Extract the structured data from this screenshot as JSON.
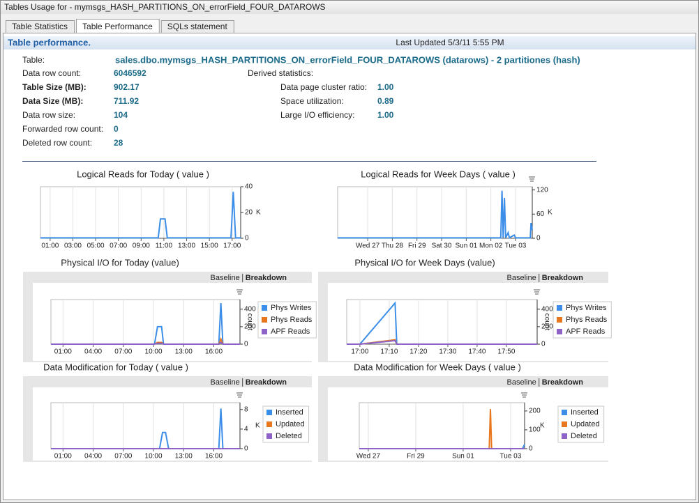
{
  "window": {
    "title": "Tables Usage for - mymsgs_HASH_PARTITIONS_ON_errorField_FOUR_DATAROWS"
  },
  "tabs": {
    "items": [
      "Table Statistics",
      "Table Performance",
      "SQLs statement"
    ],
    "active": 1
  },
  "header": {
    "title": "Table performance.",
    "last_updated": "Last Updated 5/3/11 5:55 PM"
  },
  "table": {
    "label": "Table:",
    "value": "sales.dbo.mymsgs_HASH_PARTITIONS_ON_errorField_FOUR_DATAROWS (datarows) - 2 partitiones (hash)"
  },
  "stats": {
    "rows": [
      {
        "label": "Data row count:",
        "value": "6046592",
        "emphasis": false
      },
      {
        "label": "Table Size (MB):",
        "value": "902.17",
        "emphasis": true
      },
      {
        "label": "Data Size (MB):",
        "value": "711.92",
        "emphasis": true
      },
      {
        "label": "Data row size:",
        "value": "104",
        "emphasis": false
      },
      {
        "label": "Forwarded row count:",
        "value": "0",
        "emphasis": false
      },
      {
        "label": "Deleted row count:",
        "value": "28",
        "emphasis": false
      }
    ]
  },
  "derived": {
    "label": "Derived statistics:",
    "rows": [
      {
        "label": "Data page cluster ratio:",
        "value": "1.00"
      },
      {
        "label": "Space utilization:",
        "value": "0.89"
      },
      {
        "label": "Large I/O efficiency:",
        "value": "1.00"
      }
    ]
  },
  "chart_data": [
    {
      "type": "line",
      "title": "Logical Reads for Today ( value )",
      "color": "#3c8ee8",
      "y_label": "K",
      "x": [
        0.15,
        10.5,
        10.7,
        11.1,
        11.3,
        16.9,
        17.1,
        17.3,
        17.75
      ],
      "values": [
        0.3,
        0.3,
        15,
        15,
        0.3,
        0.3,
        36,
        0.3,
        0.3
      ],
      "xlim": [
        0.15,
        17.75
      ],
      "xticks": [
        {
          "value": 1,
          "label": "01:00"
        },
        {
          "value": 3,
          "label": "03:00"
        },
        {
          "value": 5,
          "label": "05:00"
        },
        {
          "value": 7,
          "label": "07:00"
        },
        {
          "value": 9,
          "label": "09:00"
        },
        {
          "value": 11,
          "label": "11:00"
        },
        {
          "value": 13,
          "label": "13:00"
        },
        {
          "value": 15,
          "label": "15:00"
        },
        {
          "value": 17,
          "label": "17:00"
        }
      ],
      "ylim": [
        0,
        40
      ],
      "yticks": [
        0,
        20,
        40
      ],
      "grid": true
    },
    {
      "type": "line",
      "title": "Logical Reads for Week Days ( value )",
      "color": "#3c8ee8",
      "y_label": "K",
      "x": [
        -0.22,
        6.4,
        6.45,
        6.5,
        6.55,
        6.6,
        6.7,
        6.75,
        6.95,
        7.0,
        7.6,
        7.63,
        7.68
      ],
      "values": [
        1,
        1,
        118,
        1,
        100,
        1,
        14,
        1,
        8,
        1,
        1,
        38,
        20
      ],
      "xlim": [
        -0.22,
        7.68
      ],
      "xticks": [
        {
          "value": 1,
          "label": "Wed 27"
        },
        {
          "value": 2,
          "label": "Thu 28"
        },
        {
          "value": 3,
          "label": "Fri 29"
        },
        {
          "value": 4,
          "label": "Sat 30"
        },
        {
          "value": 5,
          "label": "Sun 01"
        },
        {
          "value": 6,
          "label": "Mon 02"
        },
        {
          "value": 7,
          "label": "Tue 03"
        }
      ],
      "ylim": [
        0,
        128
      ],
      "yticks": [
        0,
        60,
        120
      ],
      "grid": true
    },
    {
      "type": "line",
      "title": "Physical I/O for Today (value)",
      "y_label": "count",
      "view_options": [
        "Baseline",
        "Breakdown"
      ],
      "view_active": 1,
      "x": [
        -0.2,
        10.1,
        10.4,
        10.8,
        11.0,
        16.5,
        16.7,
        16.9,
        18.6
      ],
      "series": [
        {
          "name": "Phys Writes",
          "color": "#3c8ee8",
          "values": [
            0,
            0,
            200,
            200,
            0,
            0,
            470,
            0,
            0
          ]
        },
        {
          "name": "Phys Reads",
          "color": "#e8761c",
          "values": [
            0,
            0,
            20,
            20,
            0,
            0,
            60,
            0,
            0
          ]
        },
        {
          "name": "APF Reads",
          "color": "#8e63c8",
          "values": [
            0,
            0,
            10,
            10,
            0,
            0,
            20,
            0,
            0
          ]
        }
      ],
      "xlim": [
        -0.2,
        18.6
      ],
      "xticks": [
        {
          "value": 1,
          "label": "01:00"
        },
        {
          "value": 4,
          "label": "04:00"
        },
        {
          "value": 7,
          "label": "07:00"
        },
        {
          "value": 10,
          "label": "10:00"
        },
        {
          "value": 13,
          "label": "13:00"
        },
        {
          "value": 16,
          "label": "16:00"
        }
      ],
      "ylim": [
        0,
        510
      ],
      "yticks": [
        0,
        200,
        400
      ],
      "grid": true
    },
    {
      "type": "line",
      "title": "Physical I/O for Week Days (value)",
      "y_label": "count",
      "view_options": [
        "Baseline",
        "Breakdown"
      ],
      "view_active": 1,
      "x": [
        -4.5,
        0,
        12,
        12.6,
        60.5
      ],
      "series": [
        {
          "name": "Phys Writes",
          "color": "#3c8ee8",
          "values": [
            0,
            0,
            470,
            0,
            0
          ]
        },
        {
          "name": "Phys Reads",
          "color": "#e8761c",
          "values": [
            0,
            0,
            50,
            0,
            0
          ]
        },
        {
          "name": "APF Reads",
          "color": "#8e63c8",
          "values": [
            0,
            0,
            40,
            0,
            0
          ]
        }
      ],
      "xlim": [
        -4.5,
        60.5
      ],
      "xticks": [
        {
          "value": 0,
          "label": "17:00"
        },
        {
          "value": 10,
          "label": "17:10"
        },
        {
          "value": 20,
          "label": "17:20"
        },
        {
          "value": 30,
          "label": "17:30"
        },
        {
          "value": 40,
          "label": "17:40"
        },
        {
          "value": 50,
          "label": "17:50"
        }
      ],
      "ylim": [
        0,
        510
      ],
      "yticks": [
        0,
        200,
        400
      ],
      "grid": true
    },
    {
      "type": "line",
      "title": "Data Modification for Today ( value )",
      "y_label": "K",
      "view_options": [
        "Baseline",
        "Breakdown"
      ],
      "view_active": 1,
      "x": [
        -0.2,
        10.6,
        10.9,
        11.2,
        11.5,
        16.5,
        16.7,
        16.9,
        18.6
      ],
      "series": [
        {
          "name": "Inserted",
          "color": "#3c8ee8",
          "values": [
            0,
            0,
            3.3,
            3.3,
            0,
            0,
            8.2,
            0,
            0
          ]
        },
        {
          "name": "Updated",
          "color": "#e8761c",
          "values": [
            0,
            0,
            0,
            0,
            0,
            0,
            0,
            0,
            0
          ]
        },
        {
          "name": "Deleted",
          "color": "#8e63c8",
          "values": [
            0,
            0,
            0,
            0,
            0,
            0,
            0,
            0,
            0
          ]
        }
      ],
      "xlim": [
        -0.2,
        18.6
      ],
      "xticks": [
        {
          "value": 1,
          "label": "01:00"
        },
        {
          "value": 4,
          "label": "04:00"
        },
        {
          "value": 7,
          "label": "07:00"
        },
        {
          "value": 10,
          "label": "10:00"
        },
        {
          "value": 13,
          "label": "13:00"
        },
        {
          "value": 16,
          "label": "16:00"
        }
      ],
      "ylim": [
        0,
        9.4
      ],
      "yticks": [
        0,
        4,
        8
      ],
      "grid": true
    },
    {
      "type": "line",
      "title": "Data Modification for Week Days ( value )",
      "y_label": "K",
      "view_options": [
        "Baseline",
        "Breakdown"
      ],
      "view_active": 1,
      "x": [
        0.62,
        6.1,
        6.15,
        6.2,
        7.5,
        7.59
      ],
      "series": [
        {
          "name": "Inserted",
          "color": "#3c8ee8",
          "values": [
            0,
            0,
            0,
            0,
            0,
            22
          ]
        },
        {
          "name": "Updated",
          "color": "#e8761c",
          "values": [
            0,
            0,
            210,
            0,
            0,
            0
          ]
        },
        {
          "name": "Deleted",
          "color": "#8e63c8",
          "values": [
            0,
            0,
            0,
            0,
            0,
            0
          ]
        }
      ],
      "xlim": [
        0.62,
        7.59
      ],
      "xticks": [
        {
          "value": 1,
          "label": "Wed 27"
        },
        {
          "value": 3,
          "label": "Fri 29"
        },
        {
          "value": 5,
          "label": "Sun 01"
        },
        {
          "value": 7,
          "label": "Tue 03"
        }
      ],
      "ylim": [
        0,
        244
      ],
      "yticks": [
        0,
        100,
        200
      ],
      "grid": true
    }
  ]
}
